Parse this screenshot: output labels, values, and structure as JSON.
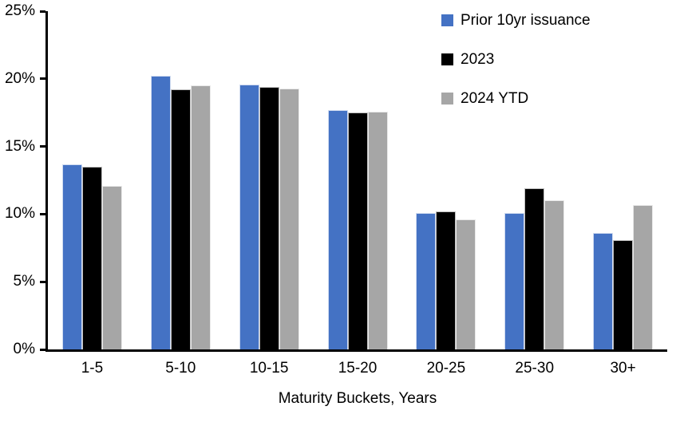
{
  "chart_data": {
    "type": "bar",
    "title": "",
    "xlabel": "Maturity Buckets, Years",
    "ylabel": "",
    "categories": [
      "1-5",
      "5-10",
      "10-15",
      "15-20",
      "20-25",
      "25-30",
      "30+"
    ],
    "series": [
      {
        "name": "Prior 10yr issuance",
        "color": "#4472C4",
        "values": [
          13.7,
          20.2,
          19.6,
          17.7,
          10.1,
          10.1,
          8.6
        ]
      },
      {
        "name": "2023",
        "color": "#000000",
        "values": [
          13.5,
          19.2,
          19.4,
          17.5,
          10.2,
          11.9,
          8.1
        ]
      },
      {
        "name": "2024 YTD",
        "color": "#A6A6A6",
        "values": [
          12.1,
          19.5,
          19.3,
          17.6,
          9.6,
          11.0,
          10.7
        ]
      }
    ],
    "ylim": [
      0,
      25
    ],
    "ytick_step": 5,
    "ytick_labels": [
      "0%",
      "5%",
      "10%",
      "15%",
      "20%",
      "25%"
    ],
    "grid": false,
    "legend_position": "top-right",
    "axis_color": "#000000",
    "background_color": "#FFFFFF"
  }
}
